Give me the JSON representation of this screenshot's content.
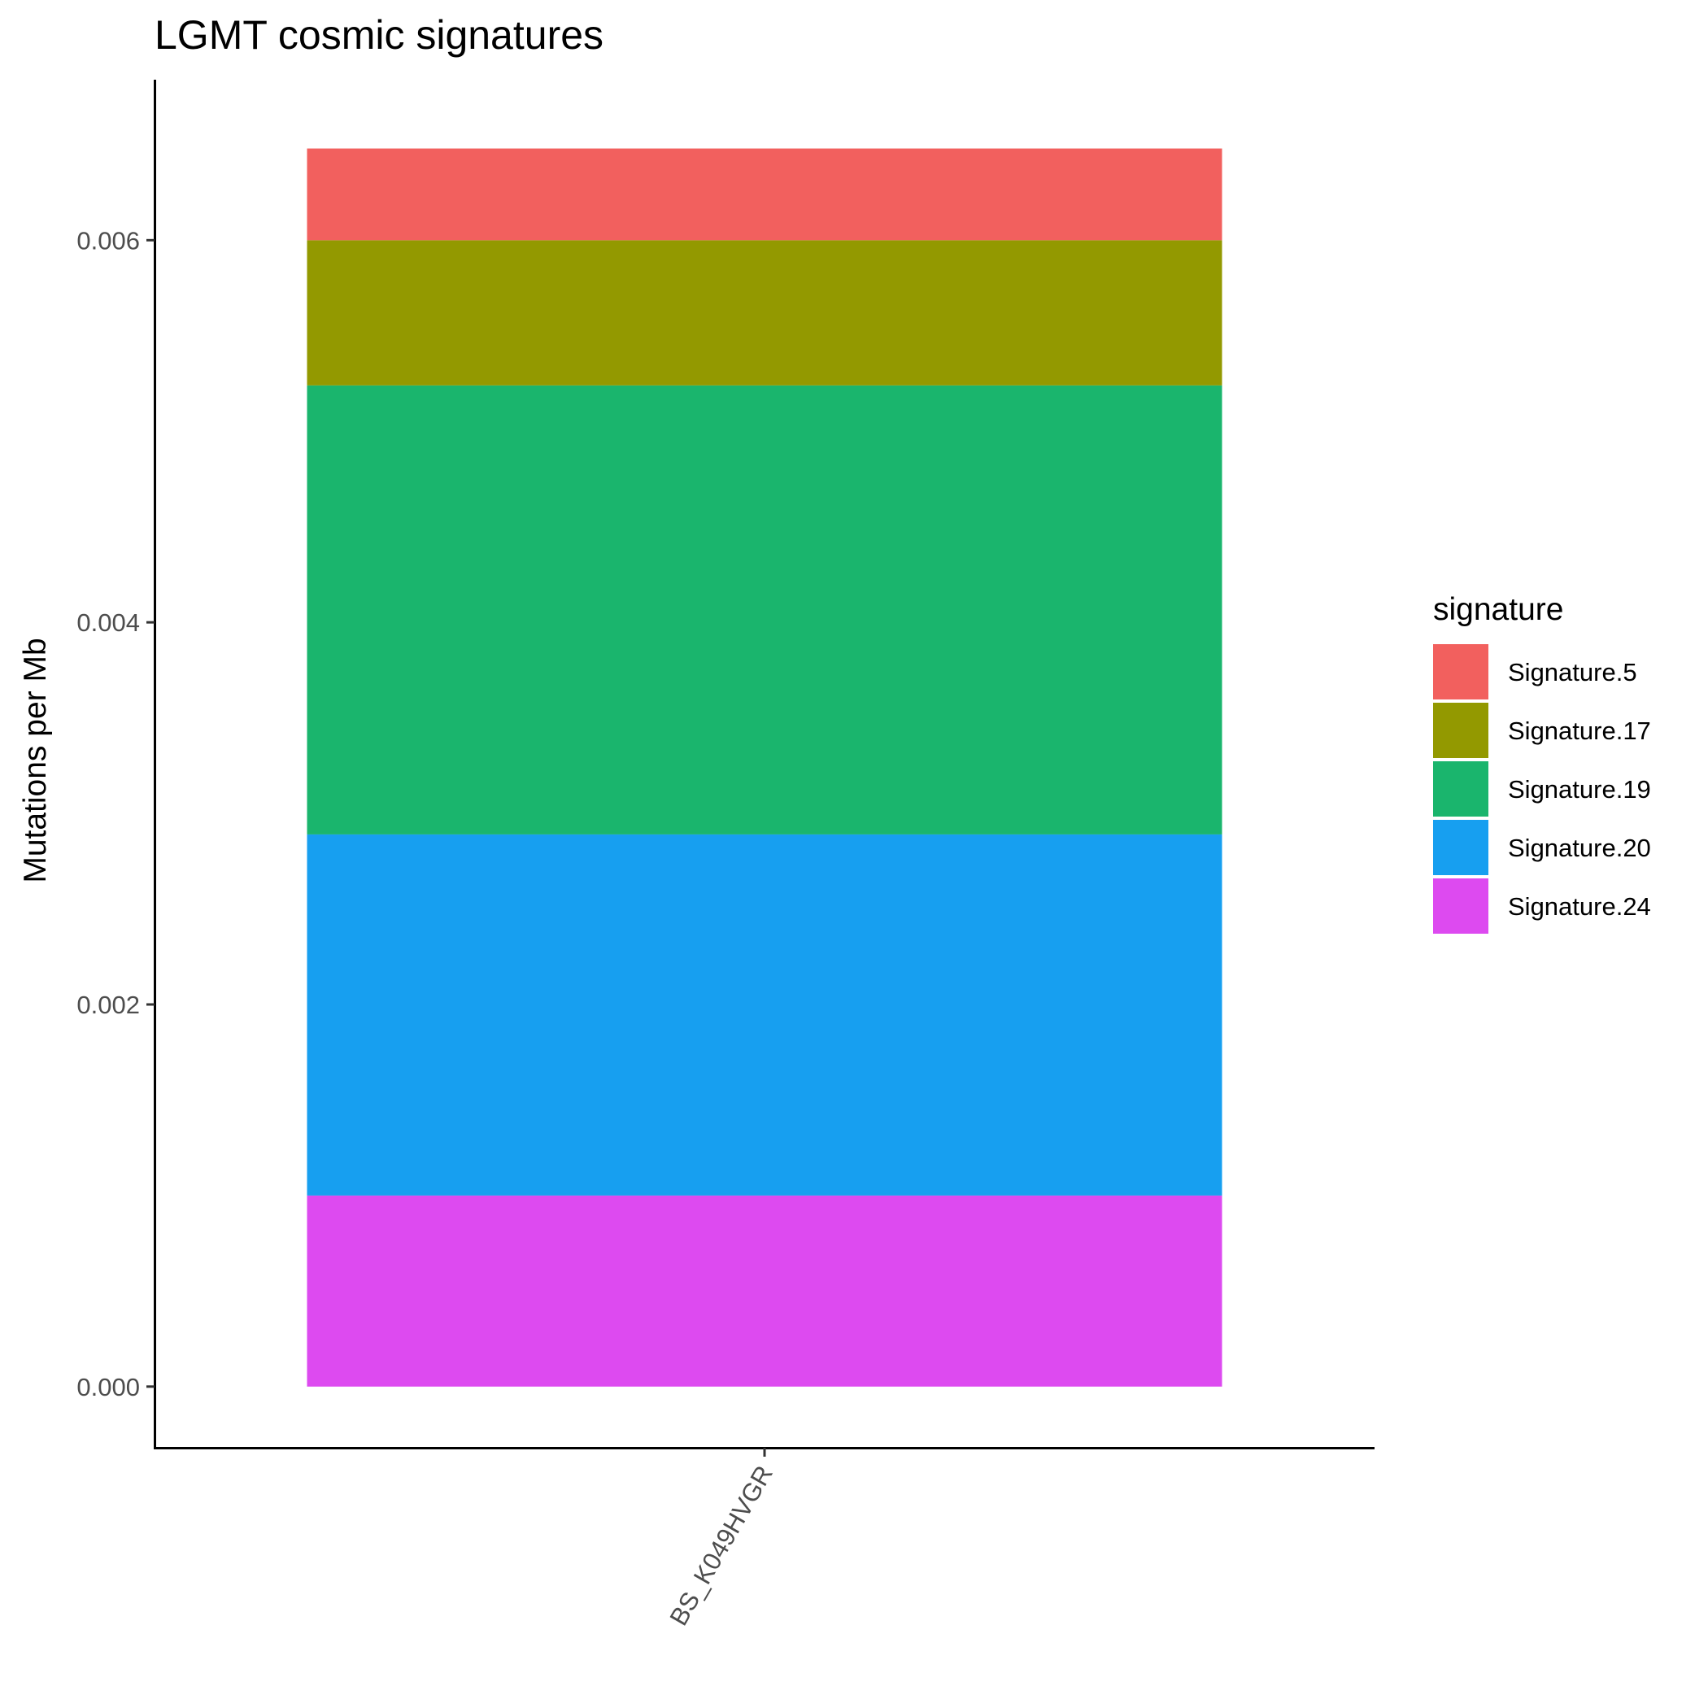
{
  "chart_data": {
    "type": "bar",
    "stacked": true,
    "title": "LGMT cosmic signatures",
    "xlabel": "",
    "ylabel": "Mutations per Mb",
    "categories": [
      "BS_K049HVGR"
    ],
    "ylim": [
      -0.00032,
      0.00684
    ],
    "yticks": [
      "0.000",
      "0.002",
      "0.004",
      "0.006"
    ],
    "ytick_values": [
      0,
      0.002,
      0.004,
      0.006
    ],
    "grid": false,
    "legend_position": "right",
    "legend_title": "signature",
    "series": [
      {
        "name": "Signature.5",
        "color": "#F2605E",
        "values": [
          0.00048
        ]
      },
      {
        "name": "Signature.17",
        "color": "#939900",
        "values": [
          0.00076
        ]
      },
      {
        "name": "Signature.19",
        "color": "#1AB56D",
        "values": [
          0.00235
        ]
      },
      {
        "name": "Signature.20",
        "color": "#179FF0",
        "values": [
          0.00189
        ]
      },
      {
        "name": "Signature.24",
        "color": "#DD4AF0",
        "values": [
          0.001
        ]
      }
    ],
    "stack_order_bottom_to_top": [
      "Signature.24",
      "Signature.20",
      "Signature.19",
      "Signature.17",
      "Signature.5"
    ]
  }
}
